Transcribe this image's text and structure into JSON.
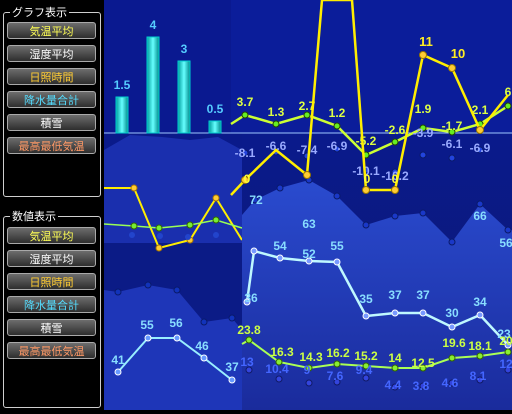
{
  "sidebar": {
    "graph_group": {
      "legend": "グラフ表示",
      "buttons": [
        {
          "label": "気温平均",
          "color": "#ffff55"
        },
        {
          "label": "湿度平均",
          "color": "#ffffff"
        },
        {
          "label": "日照時間",
          "color": "#ffcc33"
        },
        {
          "label": "降水量合計",
          "color": "#55ddff"
        },
        {
          "label": "積雪",
          "color": "#ffffff"
        },
        {
          "label": "最高最低気温",
          "color": "#ff9966"
        }
      ]
    },
    "value_group": {
      "legend": "数値表示",
      "buttons": [
        {
          "label": "気温平均",
          "color": "#ffff55"
        },
        {
          "label": "湿度平均",
          "color": "#ffffff"
        },
        {
          "label": "日照時間",
          "color": "#ffcc33"
        },
        {
          "label": "降水量合計",
          "color": "#55ddff"
        },
        {
          "label": "積雪",
          "color": "#ffffff"
        },
        {
          "label": "最高最低気温",
          "color": "#ff9966"
        }
      ]
    }
  },
  "chart_data": {
    "type": "bar",
    "snow": {
      "values": [
        "1.5",
        "4",
        "3",
        "0.5"
      ]
    },
    "temperature": {
      "labels": [
        "3.7",
        "1.3",
        "2.7",
        "1.2",
        "-5.2",
        "-2.6",
        "1.9",
        "-1.7",
        "2.1",
        "6"
      ]
    },
    "low_temps": {
      "labels": [
        "-8.1",
        "-6.6",
        "-7.4",
        "-6.9",
        "-10.1",
        "-10.2",
        "-3.9",
        "-6.1",
        "-6.9"
      ]
    },
    "sunshine": {
      "labels": [
        "0",
        "0",
        "0",
        "11",
        "10"
      ]
    },
    "high_humidity": {
      "labels": [
        "72",
        "63",
        "66",
        "56"
      ]
    },
    "humidity": {
      "labels": [
        "36",
        "54",
        "52",
        "55",
        "35",
        "37",
        "37",
        "30",
        "34",
        "23"
      ]
    },
    "precip_small": {
      "labels": [
        "41",
        "55",
        "56",
        "46",
        "37"
      ]
    },
    "low_temp_green": {
      "labels": [
        "23.8",
        "16.3",
        "14.3",
        "16.2",
        "15.2",
        "14",
        "12.5",
        "19.6",
        "18.1",
        "20"
      ]
    },
    "bottom_values": {
      "labels": [
        "13",
        "10.4",
        "9",
        "7.6",
        "9.4",
        "4.4",
        "3.8",
        "4.6",
        "8.1",
        "12"
      ]
    }
  }
}
